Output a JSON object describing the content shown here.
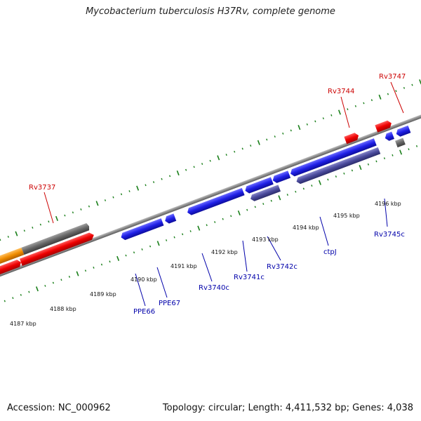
{
  "title": "Mycobacterium tuberculosis H37Rv, complete genome",
  "footer": {
    "accession": "Accession: NC_000962",
    "summary": "Topology: circular; Length: 4,411,532 bp; Genes: 4,038"
  },
  "kbp_labels": [
    "4187 kbp",
    "4188 kbp",
    "4189 kbp",
    "4190 kbp",
    "4191 kbp",
    "4192 kbp",
    "4193 kbp",
    "4194 kbp",
    "4195 kbp",
    "4196 kbp"
  ],
  "gene_labels": {
    "top": [
      "Rv3737",
      "Rv3744",
      "Rv3747"
    ],
    "bottom": [
      "PPE66",
      "PPE67",
      "Rv3740c",
      "Rv3741c",
      "Rv3742c",
      "ctpJ",
      "Rv3745c"
    ]
  },
  "colors": {
    "title": "#222222",
    "top_label": "#cc0000",
    "bottom_label": "#0000aa",
    "tick": "#1a7f1a",
    "backbone": "#888888",
    "gene_red": "#ee0000",
    "gene_blue": "#1f1fe6",
    "gene_gray": "#666666",
    "gene_orange": "#f08c00",
    "gene_slate": "#4a4a9c"
  }
}
